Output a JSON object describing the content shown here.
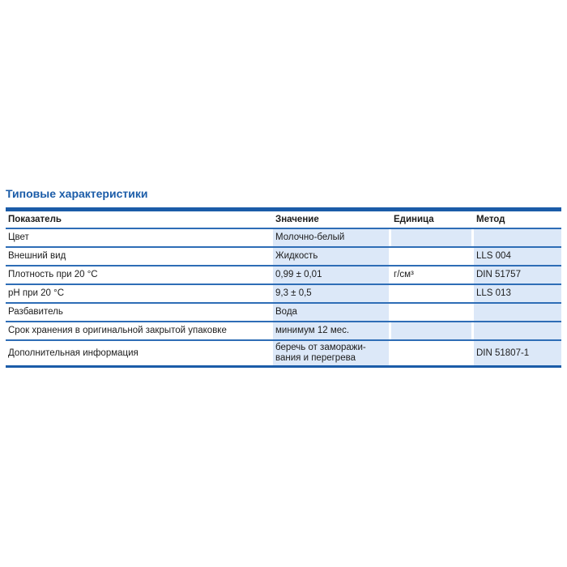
{
  "page": {
    "title": "Типовые характеристики"
  },
  "colors": {
    "accent_blue": "#1b5ca8",
    "rule_blue": "#2e6db6",
    "cell_fill_blue": "#dce8f8",
    "text": "#1c1c1c"
  },
  "table": {
    "headers": [
      "Показатель",
      "Значение",
      "Единица",
      "Метод"
    ],
    "rows": [
      {
        "param": "Цвет",
        "value": "Молочно-белый",
        "unit": "",
        "method": "",
        "unit_shaded": true
      },
      {
        "param": "Внешний вид",
        "value": "Жидкость",
        "unit": "",
        "method": "LLS 004",
        "unit_shaded": false
      },
      {
        "param": "Плотность при 20 °C",
        "value": "0,99 ± 0,01",
        "unit": "г/см³",
        "method": "DIN 51757",
        "unit_shaded": false
      },
      {
        "param": "pH при 20 °C",
        "value": "9,3 ± 0,5",
        "unit": "",
        "method": "LLS 013",
        "unit_shaded": false
      },
      {
        "param": "Разбавитель",
        "value": "Вода",
        "unit": "",
        "method": "",
        "unit_shaded": false
      },
      {
        "param": "Срок хранения в оригинальной закрытой упаковке",
        "value": "минимум 12 мес.",
        "unit": "",
        "method": "",
        "unit_shaded": true
      },
      {
        "param": "Дополнительная информация",
        "value": "беречь от заморажи-\nвания и перегрева",
        "unit": "",
        "method": "DIN 51807-1",
        "unit_shaded": false
      }
    ]
  }
}
